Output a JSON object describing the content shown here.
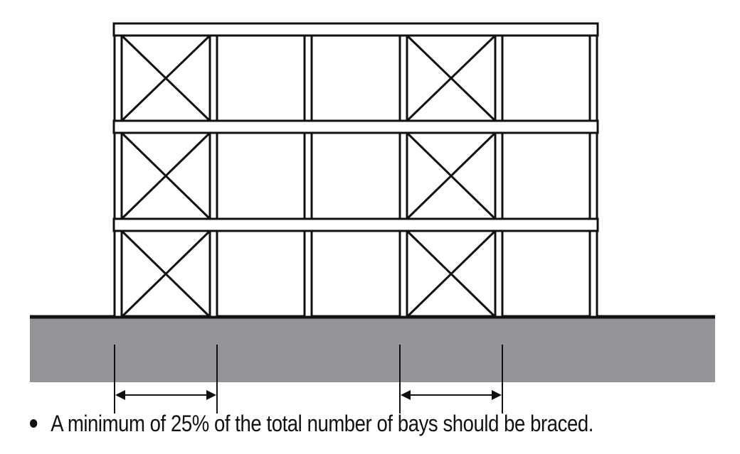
{
  "caption": {
    "text": "A minimum of 25% of the total number of bays should be braced."
  },
  "structure": {
    "bays": 5,
    "levels": 3,
    "braced_bays": [
      1,
      4
    ],
    "braced_fraction": 0.4
  },
  "colors": {
    "line": "#111111",
    "ground": "#939598",
    "background": "#ffffff"
  }
}
